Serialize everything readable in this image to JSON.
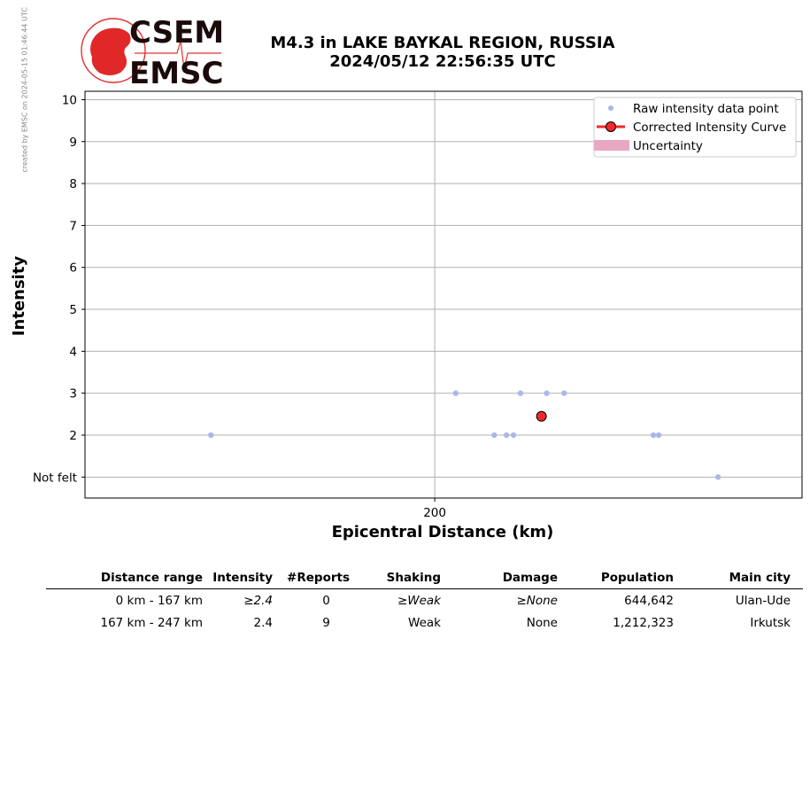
{
  "watermark": "created by EMSC on 2024-05-15 01:46:44 UTC",
  "logo": {
    "top": "CSEM",
    "bottom": "EMSC"
  },
  "header": {
    "title_line1": "M4.3 in LAKE BAYKAL REGION, RUSSIA",
    "title_line2": "2024/05/12 22:56:35 UTC"
  },
  "chart_data": {
    "type": "scatter",
    "xlabel": "Epicentral Distance (km)",
    "ylabel": "Intensity",
    "xlim": [
      0,
      410
    ],
    "ylim": [
      0.5,
      10.2
    ],
    "x_ticks": [
      {
        "value": 200,
        "label": "200"
      }
    ],
    "y_ticks": [
      {
        "value": 1,
        "label": "Not felt"
      },
      {
        "value": 2,
        "label": "2"
      },
      {
        "value": 3,
        "label": "3"
      },
      {
        "value": 4,
        "label": "4"
      },
      {
        "value": 5,
        "label": "5"
      },
      {
        "value": 6,
        "label": "6"
      },
      {
        "value": 7,
        "label": "7"
      },
      {
        "value": 8,
        "label": "8"
      },
      {
        "value": 9,
        "label": "9"
      },
      {
        "value": 10,
        "label": "10"
      }
    ],
    "grid": true,
    "legend_position": "top-right",
    "series": [
      {
        "name": "Raw intensity data point",
        "color": "#aab8e8",
        "points": [
          {
            "x": 72,
            "y": 2
          },
          {
            "x": 212,
            "y": 3
          },
          {
            "x": 234,
            "y": 2
          },
          {
            "x": 241,
            "y": 2
          },
          {
            "x": 245,
            "y": 2
          },
          {
            "x": 249,
            "y": 3
          },
          {
            "x": 264,
            "y": 3
          },
          {
            "x": 274,
            "y": 3
          },
          {
            "x": 325,
            "y": 2
          },
          {
            "x": 328,
            "y": 2
          },
          {
            "x": 362,
            "y": 1
          }
        ]
      },
      {
        "name": "Corrected Intensity Curve",
        "color": "#ee2a2a",
        "points": [
          {
            "x": 261,
            "y": 2.45
          }
        ]
      },
      {
        "name": "Uncertainty",
        "color": "#e8a8c4",
        "points": []
      }
    ]
  },
  "table": {
    "headers": [
      "Distance range",
      "Intensity",
      "#Reports",
      "Shaking",
      "Damage",
      "Population",
      "Main city"
    ],
    "rows": [
      {
        "range": "0 km -  167 km",
        "intensity": "≥2.4",
        "reports": "0",
        "shaking": "≥Weak",
        "damage": "≥None",
        "population": "644,642",
        "city": "Ulan-Ude"
      },
      {
        "range": "167 km -  247 km",
        "intensity": "2.4",
        "reports": "9",
        "shaking": "Weak",
        "damage": "None",
        "population": "1,212,323",
        "city": "Irkutsk"
      }
    ]
  }
}
